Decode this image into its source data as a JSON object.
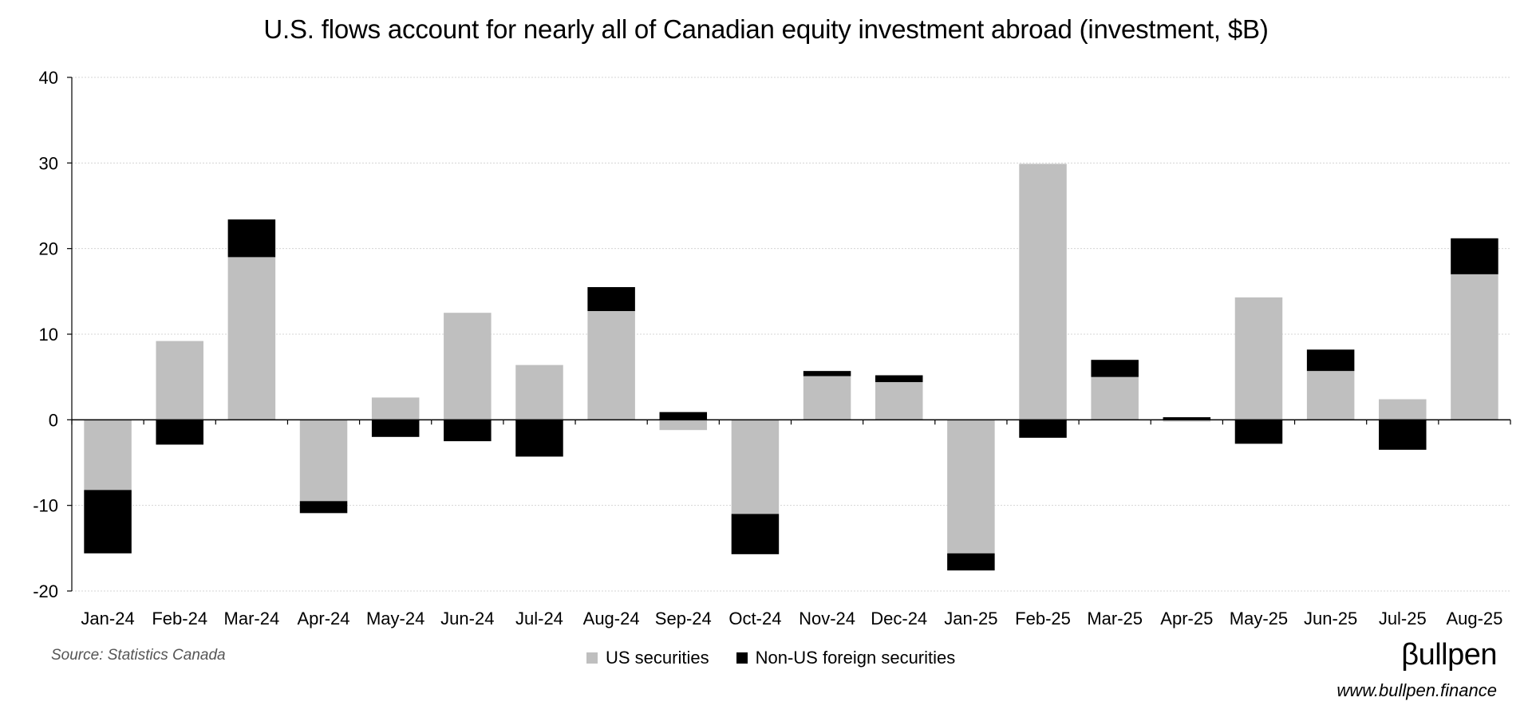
{
  "chart_data": {
    "type": "bar",
    "stacked": true,
    "title": "U.S. flows account for nearly all of Canadian equity investment abroad (investment, $B)",
    "xlabel": "",
    "ylabel": "",
    "ylim": [
      -20,
      40
    ],
    "yticks": [
      40,
      30,
      20,
      10,
      0,
      -10,
      -20
    ],
    "grid": true,
    "legend_position": "bottom-center",
    "categories": [
      "Jan-24",
      "Feb-24",
      "Mar-24",
      "Apr-24",
      "May-24",
      "Jun-24",
      "Jul-24",
      "Aug-24",
      "Sep-24",
      "Oct-24",
      "Nov-24",
      "Dec-24",
      "Jan-25",
      "Feb-25",
      "Mar-25",
      "Apr-25",
      "May-25",
      "Jun-25",
      "Jul-25",
      "Aug-25"
    ],
    "series": [
      {
        "name": "US securities",
        "color": "#bfbfbf",
        "values": [
          -8.2,
          9.2,
          19.0,
          -9.5,
          2.6,
          12.5,
          6.4,
          12.7,
          -1.2,
          -11.0,
          5.1,
          4.4,
          -15.6,
          29.9,
          5.0,
          -0.2,
          14.3,
          5.7,
          2.4,
          17.0
        ]
      },
      {
        "name": "Non-US foreign securities",
        "color": "#000000",
        "values": [
          -7.4,
          -2.9,
          4.4,
          -1.4,
          -2.0,
          -2.5,
          -4.3,
          2.8,
          0.9,
          -4.7,
          0.6,
          0.8,
          -2.0,
          -2.1,
          2.0,
          0.3,
          -2.8,
          2.5,
          -3.5,
          4.2
        ]
      }
    ]
  },
  "source": "Source: Statistics Canada",
  "brand": {
    "logo_text": "βullpen",
    "url": "www.bullpen.finance"
  }
}
